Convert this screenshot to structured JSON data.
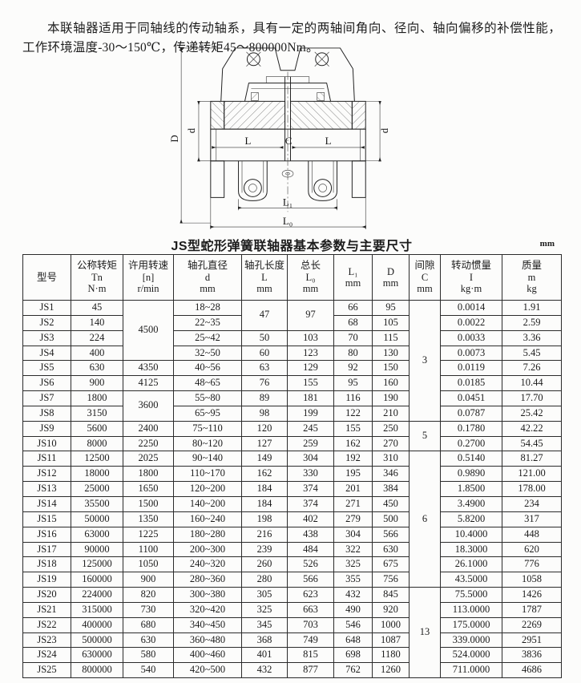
{
  "intro": {
    "text": "本联轴器适用于同轴线的传动轴系，具有一定的两轴间角向、径向、轴向偏移的补偿性能，工作环境温度-30～150℃，传递转矩45～800000Nm。"
  },
  "diagram": {
    "labels": {
      "D": "D",
      "d_left": "d",
      "d_right": "d",
      "L_left": "L",
      "C": "C",
      "L_right": "L",
      "L1": "L₁",
      "L0": "L₀"
    }
  },
  "table": {
    "title": "JS型蛇形弹簧联轴器基本参数与主要尺寸",
    "unit_note": "mm",
    "headers": [
      {
        "lines": [
          "型号"
        ]
      },
      {
        "lines": [
          "公称转矩",
          "Tn",
          "N·m"
        ]
      },
      {
        "lines": [
          "许用转速",
          "[n]",
          "r/min"
        ]
      },
      {
        "lines": [
          "轴孔直径",
          "d",
          "mm"
        ]
      },
      {
        "lines": [
          "轴孔长度",
          "L",
          "mm"
        ]
      },
      {
        "lines": [
          "总长",
          "L₀",
          "mm"
        ]
      },
      {
        "lines": [
          "L₁",
          "mm"
        ]
      },
      {
        "lines": [
          "D",
          "mm"
        ]
      },
      {
        "lines": [
          "间隙",
          "C",
          "mm"
        ]
      },
      {
        "lines": [
          "转动惯量",
          "I",
          "kg·m"
        ]
      },
      {
        "lines": [
          "质量",
          "m",
          "kg"
        ]
      }
    ],
    "rows": [
      [
        {
          "t": "JS1"
        },
        {
          "t": "45"
        },
        {
          "t": "4500",
          "rs": 4
        },
        {
          "t": "18~28"
        },
        {
          "t": "47",
          "rs": 2
        },
        {
          "t": "97",
          "rs": 2
        },
        {
          "t": "66"
        },
        {
          "t": "95"
        },
        {
          "t": "3",
          "rs": 8
        },
        {
          "t": "0.0014"
        },
        {
          "t": "1.91"
        }
      ],
      [
        {
          "t": "JS2"
        },
        {
          "t": "140"
        },
        null,
        {
          "t": "22~35"
        },
        null,
        null,
        {
          "t": "68"
        },
        {
          "t": "105"
        },
        null,
        {
          "t": "0.0022"
        },
        {
          "t": "2.59"
        }
      ],
      [
        {
          "t": "JS3"
        },
        {
          "t": "224"
        },
        null,
        {
          "t": "25~42"
        },
        {
          "t": "50"
        },
        {
          "t": "103"
        },
        {
          "t": "70"
        },
        {
          "t": "115"
        },
        null,
        {
          "t": "0.0033"
        },
        {
          "t": "3.36"
        }
      ],
      [
        {
          "t": "JS4"
        },
        {
          "t": "400"
        },
        null,
        {
          "t": "32~50"
        },
        {
          "t": "60"
        },
        {
          "t": "123"
        },
        {
          "t": "80"
        },
        {
          "t": "130"
        },
        null,
        {
          "t": "0.0073"
        },
        {
          "t": "5.45"
        }
      ],
      [
        {
          "t": "JS5"
        },
        {
          "t": "630"
        },
        {
          "t": "4350"
        },
        {
          "t": "40~56"
        },
        {
          "t": "63"
        },
        {
          "t": "129"
        },
        {
          "t": "92"
        },
        {
          "t": "150"
        },
        null,
        {
          "t": "0.0119"
        },
        {
          "t": "7.26"
        }
      ],
      [
        {
          "t": "JS6"
        },
        {
          "t": "900"
        },
        {
          "t": "4125"
        },
        {
          "t": "48~65"
        },
        {
          "t": "76"
        },
        {
          "t": "155"
        },
        {
          "t": "95"
        },
        {
          "t": "160"
        },
        null,
        {
          "t": "0.0185"
        },
        {
          "t": "10.44"
        }
      ],
      [
        {
          "t": "JS7"
        },
        {
          "t": "1800"
        },
        {
          "t": "3600",
          "rs": 2
        },
        {
          "t": "55~80"
        },
        {
          "t": "89"
        },
        {
          "t": "181"
        },
        {
          "t": "116"
        },
        {
          "t": "190"
        },
        null,
        {
          "t": "0.0451"
        },
        {
          "t": "17.70"
        }
      ],
      [
        {
          "t": "JS8"
        },
        {
          "t": "3150"
        },
        null,
        {
          "t": "65~95"
        },
        {
          "t": "98"
        },
        {
          "t": "199"
        },
        {
          "t": "122"
        },
        {
          "t": "210"
        },
        null,
        {
          "t": "0.0787"
        },
        {
          "t": "25.42"
        }
      ],
      [
        {
          "t": "JS9"
        },
        {
          "t": "5600"
        },
        {
          "t": "2400"
        },
        {
          "t": "75~110"
        },
        {
          "t": "120"
        },
        {
          "t": "245"
        },
        {
          "t": "155"
        },
        {
          "t": "250"
        },
        {
          "t": "5",
          "rs": 2
        },
        {
          "t": "0.1780"
        },
        {
          "t": "42.22"
        }
      ],
      [
        {
          "t": "JS10"
        },
        {
          "t": "8000"
        },
        {
          "t": "2250"
        },
        {
          "t": "80~120"
        },
        {
          "t": "127"
        },
        {
          "t": "259"
        },
        {
          "t": "162"
        },
        {
          "t": "270"
        },
        null,
        {
          "t": "0.2700"
        },
        {
          "t": "54.45"
        }
      ],
      [
        {
          "t": "JS11"
        },
        {
          "t": "12500"
        },
        {
          "t": "2025"
        },
        {
          "t": "90~140"
        },
        {
          "t": "149"
        },
        {
          "t": "304"
        },
        {
          "t": "192"
        },
        {
          "t": "310"
        },
        {
          "t": "6",
          "rs": 9
        },
        {
          "t": "0.5140"
        },
        {
          "t": "81.27"
        }
      ],
      [
        {
          "t": "JS12"
        },
        {
          "t": "18000"
        },
        {
          "t": "1800"
        },
        {
          "t": "110~170"
        },
        {
          "t": "162"
        },
        {
          "t": "330"
        },
        {
          "t": "195"
        },
        {
          "t": "346"
        },
        null,
        {
          "t": "0.9890"
        },
        {
          "t": "121.00"
        }
      ],
      [
        {
          "t": "JS13"
        },
        {
          "t": "25000"
        },
        {
          "t": "1650"
        },
        {
          "t": "120~200"
        },
        {
          "t": "184"
        },
        {
          "t": "374"
        },
        {
          "t": "201"
        },
        {
          "t": "384"
        },
        null,
        {
          "t": "1.8500"
        },
        {
          "t": "178.00"
        }
      ],
      [
        {
          "t": "JS14"
        },
        {
          "t": "35500"
        },
        {
          "t": "1500"
        },
        {
          "t": "140~200"
        },
        {
          "t": "184"
        },
        {
          "t": "374"
        },
        {
          "t": "271"
        },
        {
          "t": "450"
        },
        null,
        {
          "t": "3.4900"
        },
        {
          "t": "234"
        }
      ],
      [
        {
          "t": "JS15"
        },
        {
          "t": "50000"
        },
        {
          "t": "1350"
        },
        {
          "t": "160~240"
        },
        {
          "t": "198"
        },
        {
          "t": "402"
        },
        {
          "t": "279"
        },
        {
          "t": "500"
        },
        null,
        {
          "t": "5.8200"
        },
        {
          "t": "317"
        }
      ],
      [
        {
          "t": "JS16"
        },
        {
          "t": "63000"
        },
        {
          "t": "1225"
        },
        {
          "t": "180~280"
        },
        {
          "t": "216"
        },
        {
          "t": "438"
        },
        {
          "t": "304"
        },
        {
          "t": "566"
        },
        null,
        {
          "t": "10.4000"
        },
        {
          "t": "448"
        }
      ],
      [
        {
          "t": "JS17"
        },
        {
          "t": "90000"
        },
        {
          "t": "1100"
        },
        {
          "t": "200~300"
        },
        {
          "t": "239"
        },
        {
          "t": "484"
        },
        {
          "t": "322"
        },
        {
          "t": "630"
        },
        null,
        {
          "t": "18.3000"
        },
        {
          "t": "620"
        }
      ],
      [
        {
          "t": "JS18"
        },
        {
          "t": "125000"
        },
        {
          "t": "1050"
        },
        {
          "t": "240~320"
        },
        {
          "t": "260"
        },
        {
          "t": "526"
        },
        {
          "t": "325"
        },
        {
          "t": "675"
        },
        null,
        {
          "t": "26.1000"
        },
        {
          "t": "776"
        }
      ],
      [
        {
          "t": "JS19"
        },
        {
          "t": "160000"
        },
        {
          "t": "900"
        },
        {
          "t": "280~360"
        },
        {
          "t": "280"
        },
        {
          "t": "566"
        },
        {
          "t": "355"
        },
        {
          "t": "756"
        },
        null,
        {
          "t": "43.5000"
        },
        {
          "t": "1058"
        }
      ],
      [
        {
          "t": "JS20"
        },
        {
          "t": "224000"
        },
        {
          "t": "820"
        },
        {
          "t": "300~380"
        },
        {
          "t": "305"
        },
        {
          "t": "623"
        },
        {
          "t": "432"
        },
        {
          "t": "845"
        },
        {
          "t": "13",
          "rs": 6
        },
        {
          "t": "75.5000"
        },
        {
          "t": "1426"
        }
      ],
      [
        {
          "t": "JS21"
        },
        {
          "t": "315000"
        },
        {
          "t": "730"
        },
        {
          "t": "320~420"
        },
        {
          "t": "325"
        },
        {
          "t": "663"
        },
        {
          "t": "490"
        },
        {
          "t": "920"
        },
        null,
        {
          "t": "113.0000"
        },
        {
          "t": "1787"
        }
      ],
      [
        {
          "t": "JS22"
        },
        {
          "t": "400000"
        },
        {
          "t": "680"
        },
        {
          "t": "340~450"
        },
        {
          "t": "345"
        },
        {
          "t": "703"
        },
        {
          "t": "546"
        },
        {
          "t": "1000"
        },
        null,
        {
          "t": "175.0000"
        },
        {
          "t": "2269"
        }
      ],
      [
        {
          "t": "JS23"
        },
        {
          "t": "500000"
        },
        {
          "t": "630"
        },
        {
          "t": "360~480"
        },
        {
          "t": "368"
        },
        {
          "t": "749"
        },
        {
          "t": "648"
        },
        {
          "t": "1087"
        },
        null,
        {
          "t": "339.0000"
        },
        {
          "t": "2951"
        }
      ],
      [
        {
          "t": "JS24"
        },
        {
          "t": "630000"
        },
        {
          "t": "580"
        },
        {
          "t": "400~460"
        },
        {
          "t": "401"
        },
        {
          "t": "815"
        },
        {
          "t": "698"
        },
        {
          "t": "1180"
        },
        null,
        {
          "t": "524.0000"
        },
        {
          "t": "3836"
        }
      ],
      [
        {
          "t": "JS25"
        },
        {
          "t": "800000"
        },
        {
          "t": "540"
        },
        {
          "t": "420~500"
        },
        {
          "t": "432"
        },
        {
          "t": "877"
        },
        {
          "t": "762"
        },
        {
          "t": "1260"
        },
        null,
        {
          "t": "711.0000"
        },
        {
          "t": "4686"
        }
      ]
    ],
    "group_top_rows": [
      4,
      8,
      10,
      19
    ]
  }
}
